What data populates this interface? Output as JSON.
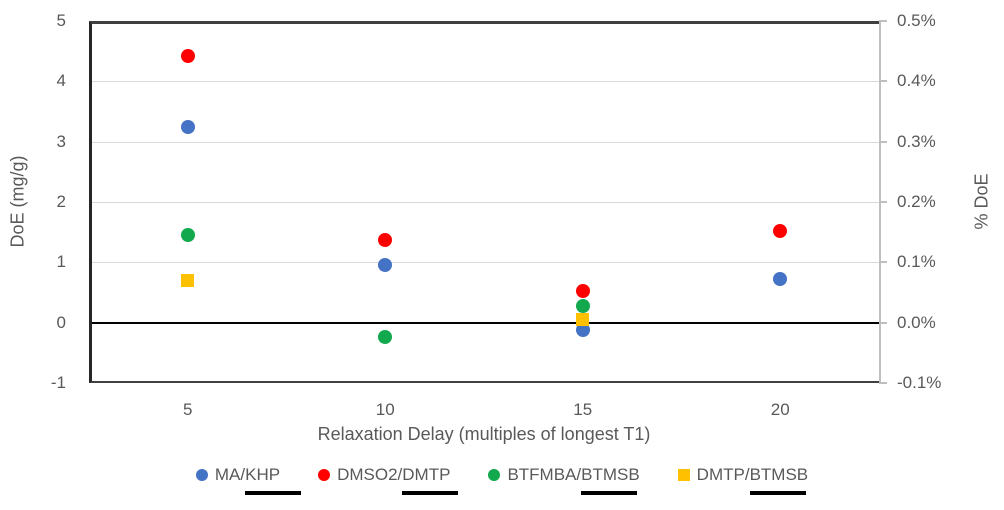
{
  "chart_data": {
    "type": "scatter",
    "xlabel": "Relaxation Delay (multiples of longest T1)",
    "ylabel_left": "DoE (mg/g)",
    "ylabel_right": "% DoE",
    "x_ticks": [
      "5",
      "10",
      "15",
      "20"
    ],
    "y_left": {
      "min": -1,
      "max": 5,
      "tick_step": 1,
      "ticks": [
        "5",
        "4",
        "3",
        "2",
        "1",
        "0",
        "-1"
      ]
    },
    "y_right": {
      "ticks": [
        "0.5%",
        "0.4%",
        "0.3%",
        "0.2%",
        "0.1%",
        "0.0%",
        "-0.1%"
      ]
    },
    "grid": true,
    "zero_line": true,
    "legend_position": "bottom",
    "series": [
      {
        "name": "MA/KHP",
        "color": "#4472C4",
        "marker": "circle",
        "points": [
          [
            5,
            3.25
          ],
          [
            10,
            0.96
          ],
          [
            15,
            -0.12
          ],
          [
            20,
            0.73
          ]
        ]
      },
      {
        "name": "DMSO2/DMTP",
        "color": "#FF0000",
        "marker": "circle",
        "points": [
          [
            5,
            4.42
          ],
          [
            10,
            1.37
          ],
          [
            15,
            0.52
          ],
          [
            20,
            1.52
          ]
        ]
      },
      {
        "name": "BTFMBA/BTMSB",
        "color": "#12A84D",
        "marker": "circle",
        "points": [
          [
            5,
            1.45
          ],
          [
            10,
            -0.23
          ],
          [
            15,
            0.27
          ]
        ]
      },
      {
        "name": "DMTP/BTMSB",
        "color": "#FFC000",
        "marker": "square",
        "points": [
          [
            5,
            0.7
          ],
          [
            15,
            0.05
          ]
        ]
      }
    ],
    "legend": [
      {
        "color": "#4472C4",
        "marker": "circle",
        "label_plain": "MA/",
        "label_underlined": "KHP"
      },
      {
        "color": "#FF0000",
        "marker": "circle",
        "label_plain": "DMSO2/",
        "label_underlined": "DMTP"
      },
      {
        "color": "#12A84D",
        "marker": "circle",
        "label_plain": "BTFMBA/",
        "label_underlined": "BTMSB"
      },
      {
        "color": "#FFC000",
        "marker": "square",
        "label_plain": "DMTP/",
        "label_underlined": "BTMSB"
      }
    ],
    "colors": {
      "gridline": "#D9D9D9",
      "axis_dark": "#404040",
      "axis_light": "#BFBFBF",
      "zero_line": "#000000",
      "text": "#595959"
    }
  }
}
